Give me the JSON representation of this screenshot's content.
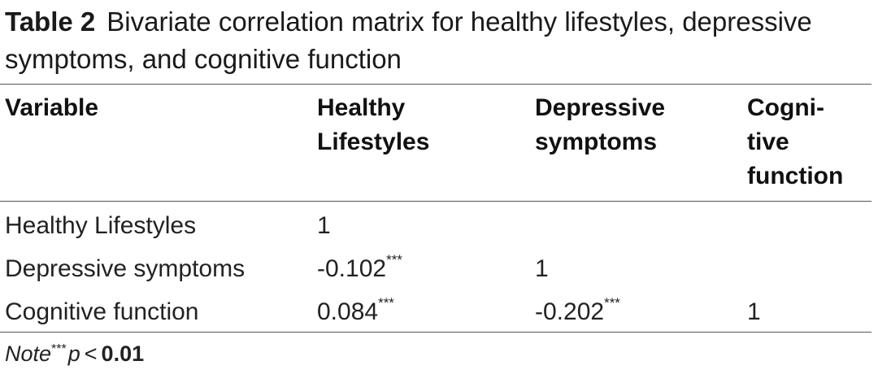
{
  "caption": {
    "label": "Table 2",
    "text": "Bivariate correlation matrix for healthy lifestyles, depressive symptoms, and cognitive function"
  },
  "table": {
    "headers": {
      "variable": "Variable",
      "col1_line1": "Healthy",
      "col1_line2": "Lifestyles",
      "col2_line1": "Depressive",
      "col2_line2": "symptoms",
      "col3_line1": "Cogni-",
      "col3_line2": "tive",
      "col3_line3": "function"
    },
    "rows": [
      {
        "variable": "Healthy Lifestyles",
        "healthy_lifestyles": "1",
        "healthy_lifestyles_sig": "",
        "depressive_symptoms": "",
        "depressive_symptoms_sig": "",
        "cognitive_function": ""
      },
      {
        "variable": "Depressive symptoms",
        "healthy_lifestyles": "-0.102",
        "healthy_lifestyles_sig": "***",
        "depressive_symptoms": "1",
        "depressive_symptoms_sig": "",
        "cognitive_function": ""
      },
      {
        "variable": "Cognitive function",
        "healthy_lifestyles": "0.084",
        "healthy_lifestyles_sig": "***",
        "depressive_symptoms": "-0.202",
        "depressive_symptoms_sig": "***",
        "cognitive_function": "1"
      }
    ]
  },
  "note": {
    "word": "Note",
    "stars": "***",
    "p": "p",
    "lt": "<",
    "value": "0.01"
  }
}
